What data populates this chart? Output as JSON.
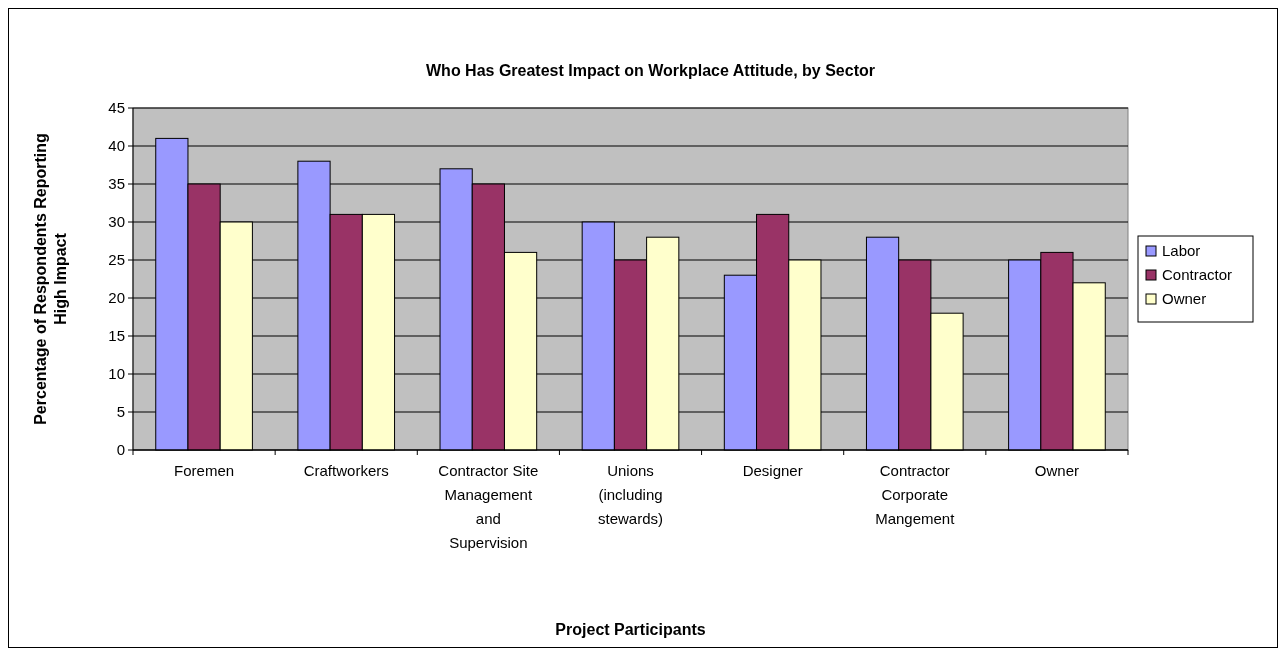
{
  "chart_data": {
    "type": "bar",
    "title": "Who Has Greatest Impact on Workplace Attitude, by Sector",
    "xlabel": "Project Participants",
    "ylabel": "Percentage of Respondents Reporting High Impact",
    "categories": [
      "Foremen",
      "Craftworkers",
      "Contractor Site Management and Supervision",
      "Unions (including stewards)",
      "Designer",
      "Contractor Corporate Mangement",
      "Owner"
    ],
    "series": [
      {
        "name": "Labor",
        "color": "#9999ff",
        "values": [
          41,
          38,
          37,
          30,
          23,
          28,
          25
        ]
      },
      {
        "name": "Contractor",
        "color": "#993366",
        "values": [
          35,
          31,
          35,
          25,
          31,
          25,
          26
        ]
      },
      {
        "name": "Owner",
        "color": "#ffffcc",
        "values": [
          30,
          31,
          26,
          28,
          25,
          18,
          22
        ]
      }
    ],
    "ylim": [
      0,
      45
    ],
    "yticks": [
      0,
      5,
      10,
      15,
      20,
      25,
      30,
      35,
      40,
      45
    ],
    "grid": "y",
    "legend": "right"
  }
}
